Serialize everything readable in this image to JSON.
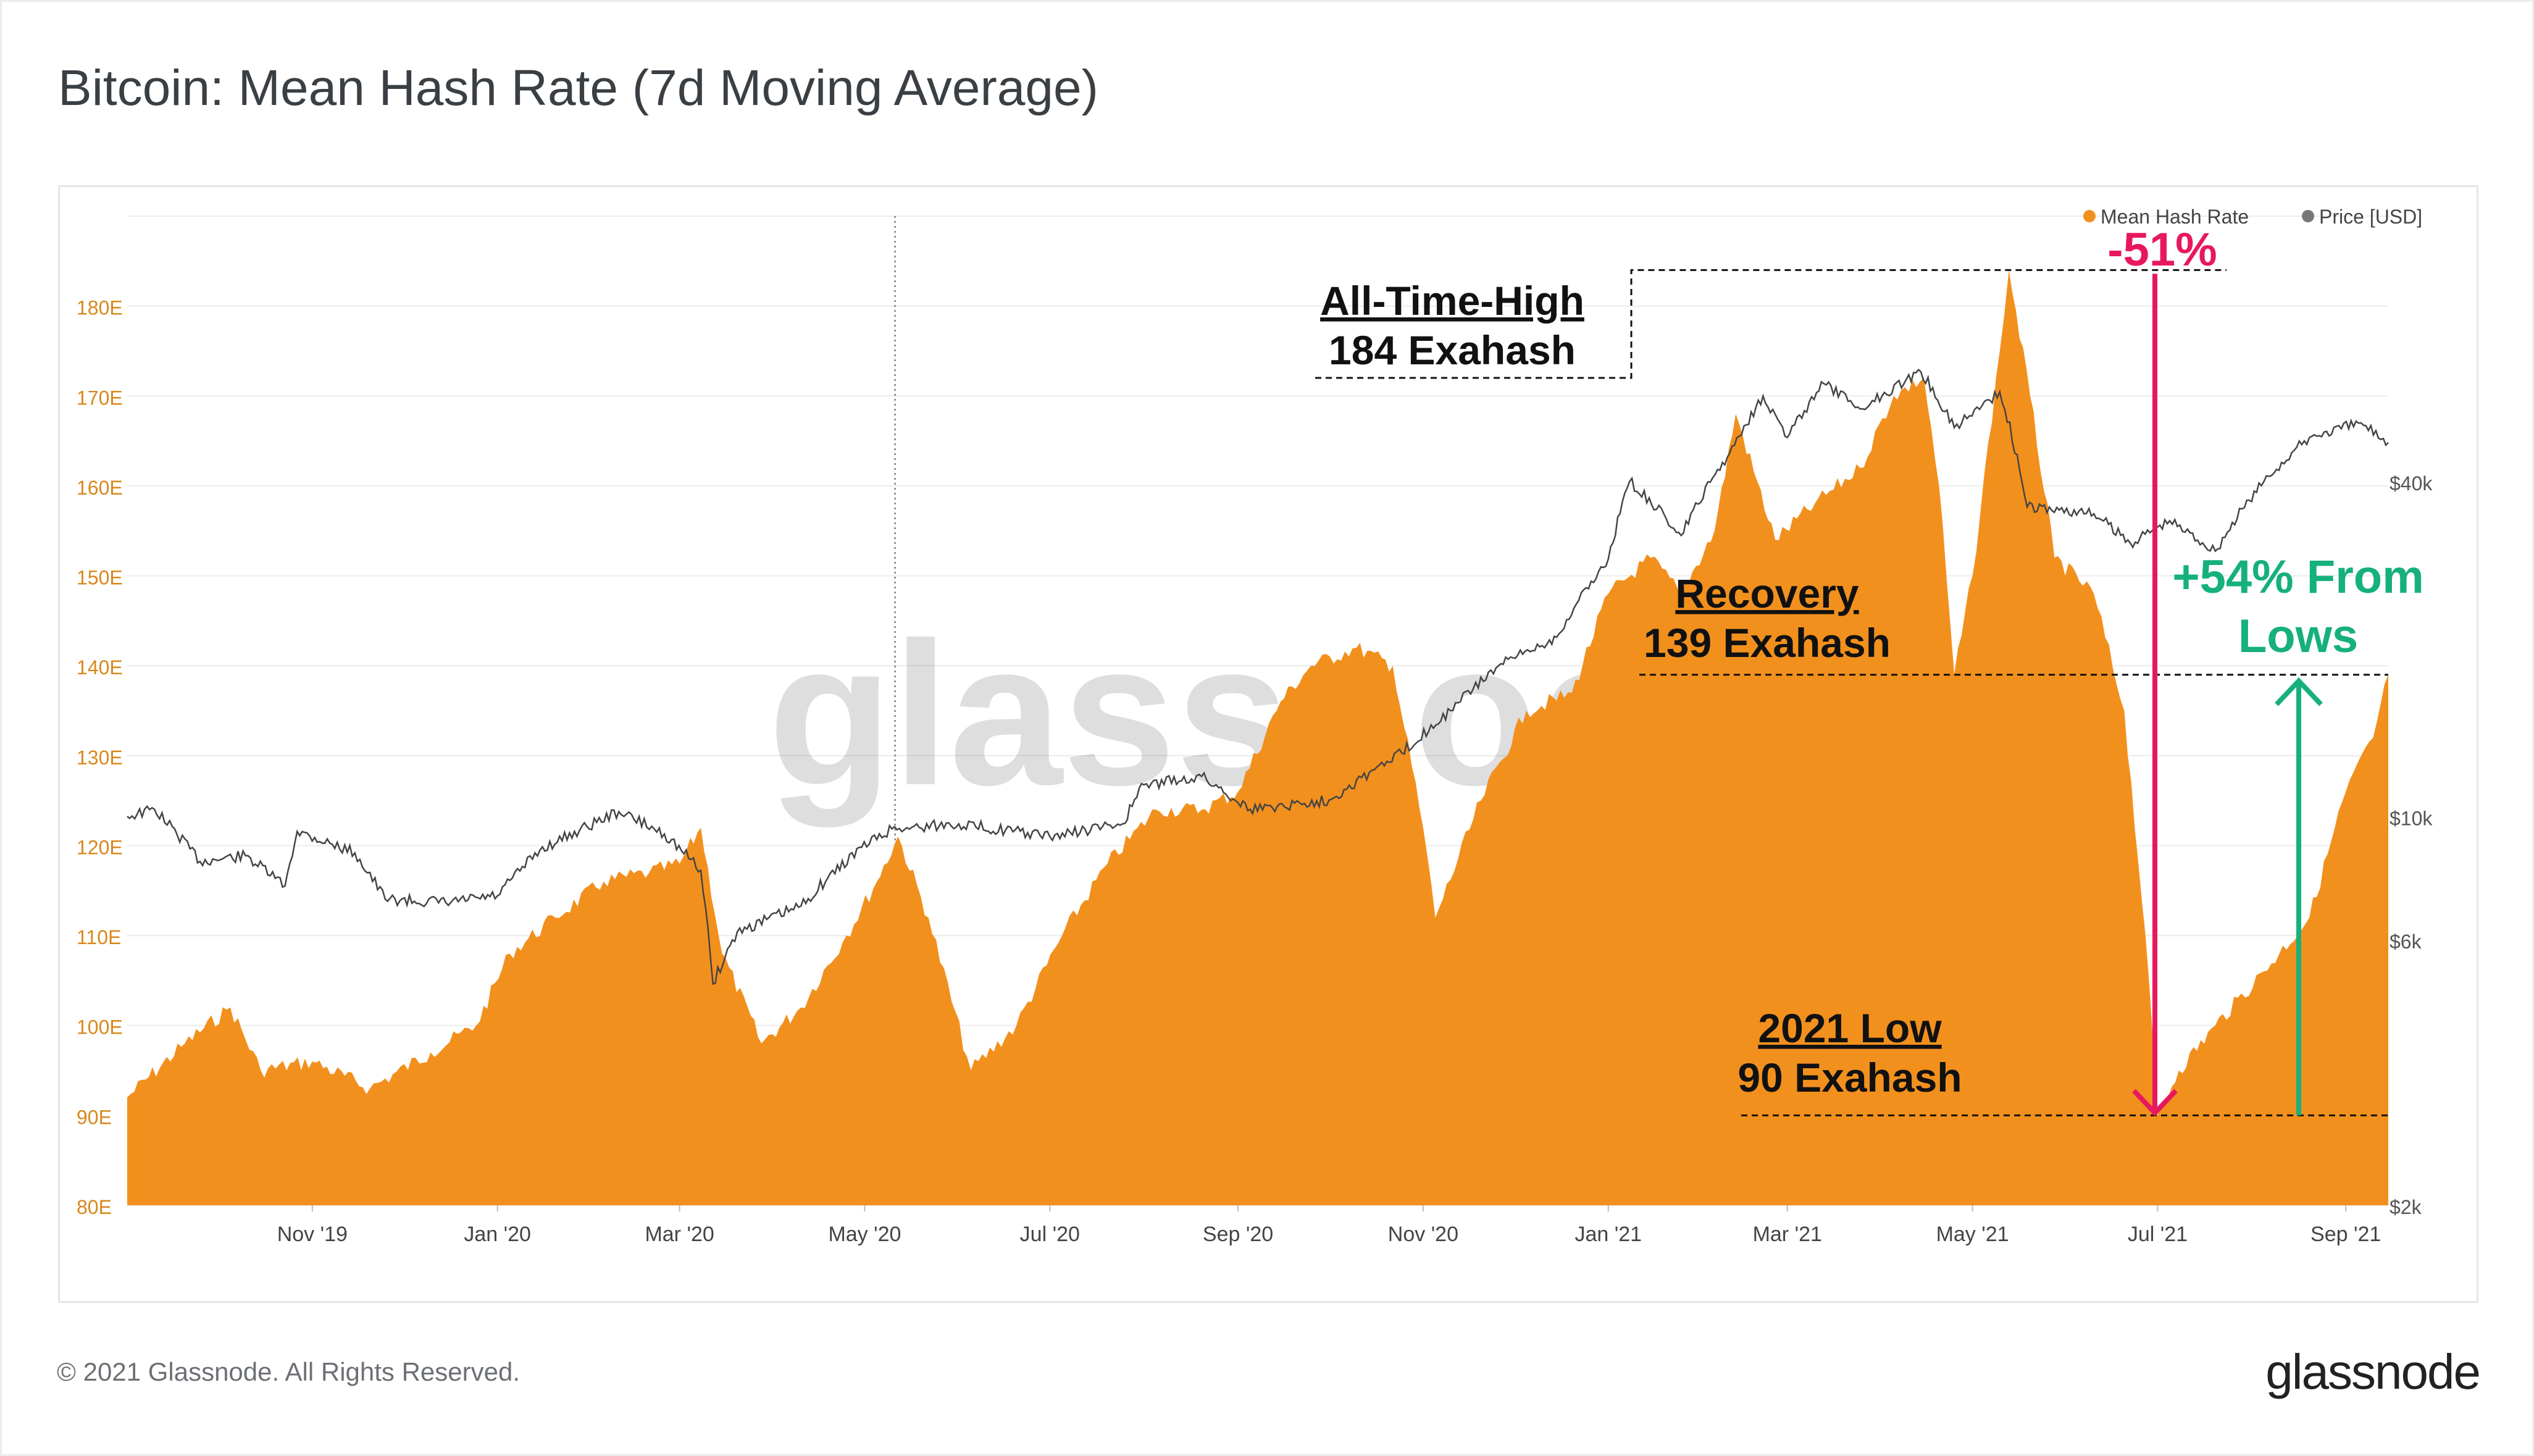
{
  "header": {
    "title": "Bitcoin: Mean Hash Rate (7d Moving Average)"
  },
  "footer": {
    "copyright": "© 2021 Glassnode. All Rights Reserved.",
    "brand": "glassnode"
  },
  "watermark": "glassnode",
  "colors": {
    "hash_rate": "#f2901e",
    "price": "#444444",
    "ath_drop": "#e8185e",
    "recovery": "#16b07c",
    "left_axis_text": "#d8881c"
  },
  "chart_data": {
    "type": "area",
    "title": "Bitcoin: Mean Hash Rate (7d Moving Average)",
    "x_range": [
      "2019-09-01",
      "2021-09-15"
    ],
    "x_tick_labels": [
      "Nov '19",
      "Jan '20",
      "Mar '20",
      "May '20",
      "Jul '20",
      "Sep '20",
      "Nov '20",
      "Jan '21",
      "Mar '21",
      "May '21",
      "Jul '21",
      "Sep '21"
    ],
    "y_left": {
      "unit": "E",
      "range": [
        80,
        190
      ],
      "tick_labels": [
        "80E",
        "90E",
        "100E",
        "110E",
        "120E",
        "130E",
        "140E",
        "150E",
        "160E",
        "170E",
        "180E"
      ]
    },
    "y_right": {
      "scale": "log",
      "range": [
        2000,
        120000
      ],
      "tick_labels": [
        "$2k",
        "$6k",
        "$10k",
        "$40k"
      ]
    },
    "legend": {
      "position": "top-right",
      "entries": [
        "Mean Hash Rate",
        "Price [USD]"
      ]
    },
    "grid": true,
    "series": [
      {
        "name": "Mean Hash Rate",
        "axis": "left",
        "color": "#f2901e",
        "points": [
          [
            "2019-09-01",
            92
          ],
          [
            "2019-09-20",
            98
          ],
          [
            "2019-10-05",
            102
          ],
          [
            "2019-10-15",
            95
          ],
          [
            "2019-11-01",
            96
          ],
          [
            "2019-11-20",
            93
          ],
          [
            "2019-12-10",
            97
          ],
          [
            "2019-12-25",
            100
          ],
          [
            "2020-01-05",
            108
          ],
          [
            "2020-01-20",
            112
          ],
          [
            "2020-02-05",
            116
          ],
          [
            "2020-02-20",
            117
          ],
          [
            "2020-03-01",
            118
          ],
          [
            "2020-03-08",
            122
          ],
          [
            "2020-03-15",
            108
          ],
          [
            "2020-03-28",
            98
          ],
          [
            "2020-04-10",
            102
          ],
          [
            "2020-04-25",
            110
          ],
          [
            "2020-05-05",
            116
          ],
          [
            "2020-05-12",
            121
          ],
          [
            "2020-05-22",
            112
          ],
          [
            "2020-06-05",
            95
          ],
          [
            "2020-06-20",
            100
          ],
          [
            "2020-07-05",
            110
          ],
          [
            "2020-07-20",
            118
          ],
          [
            "2020-08-05",
            124
          ],
          [
            "2020-08-20",
            124
          ],
          [
            "2020-09-01",
            126
          ],
          [
            "2020-09-15",
            136
          ],
          [
            "2020-09-25",
            140
          ],
          [
            "2020-10-10",
            142
          ],
          [
            "2020-10-22",
            140
          ],
          [
            "2020-11-01",
            122
          ],
          [
            "2020-11-05",
            112
          ],
          [
            "2020-11-20",
            125
          ],
          [
            "2020-12-05",
            135
          ],
          [
            "2020-12-20",
            137
          ],
          [
            "2021-01-01",
            148
          ],
          [
            "2021-01-15",
            152
          ],
          [
            "2021-01-25",
            148
          ],
          [
            "2021-02-05",
            155
          ],
          [
            "2021-02-12",
            168
          ],
          [
            "2021-02-25",
            154
          ],
          [
            "2021-03-10",
            158
          ],
          [
            "2021-03-25",
            162
          ],
          [
            "2021-04-05",
            170
          ],
          [
            "2021-04-15",
            172
          ],
          [
            "2021-04-20",
            160
          ],
          [
            "2021-04-25",
            139
          ],
          [
            "2021-05-01",
            150
          ],
          [
            "2021-05-10",
            175
          ],
          [
            "2021-05-13",
            184
          ],
          [
            "2021-05-20",
            170
          ],
          [
            "2021-05-28",
            152
          ],
          [
            "2021-06-10",
            148
          ],
          [
            "2021-06-20",
            135
          ],
          [
            "2021-06-27",
            110
          ],
          [
            "2021-07-01",
            90
          ],
          [
            "2021-07-08",
            95
          ],
          [
            "2021-07-20",
            100
          ],
          [
            "2021-08-05",
            106
          ],
          [
            "2021-08-20",
            112
          ],
          [
            "2021-09-01",
            126
          ],
          [
            "2021-09-10",
            132
          ],
          [
            "2021-09-15",
            139
          ]
        ]
      },
      {
        "name": "Price [USD]",
        "axis": "right",
        "color": "#444444",
        "points": [
          [
            "2019-09-01",
            10000
          ],
          [
            "2019-09-10",
            10300
          ],
          [
            "2019-09-25",
            8300
          ],
          [
            "2019-10-10",
            8500
          ],
          [
            "2019-10-23",
            7500
          ],
          [
            "2019-10-27",
            9400
          ],
          [
            "2019-11-15",
            8600
          ],
          [
            "2019-11-25",
            7100
          ],
          [
            "2019-12-15",
            7000
          ],
          [
            "2020-01-01",
            7200
          ],
          [
            "2020-01-15",
            8700
          ],
          [
            "2020-02-10",
            10200
          ],
          [
            "2020-02-25",
            9300
          ],
          [
            "2020-03-08",
            8000
          ],
          [
            "2020-03-12",
            5000
          ],
          [
            "2020-03-20",
            6200
          ],
          [
            "2020-04-10",
            6900
          ],
          [
            "2020-04-30",
            8800
          ],
          [
            "2020-05-10",
            9500
          ],
          [
            "2020-06-01",
            9700
          ],
          [
            "2020-07-01",
            9200
          ],
          [
            "2020-07-25",
            9700
          ],
          [
            "2020-08-01",
            11400
          ],
          [
            "2020-08-20",
            11800
          ],
          [
            "2020-09-05",
            10300
          ],
          [
            "2020-10-01",
            10700
          ],
          [
            "2020-10-25",
            13000
          ],
          [
            "2020-11-10",
            15500
          ],
          [
            "2020-11-25",
            18500
          ],
          [
            "2020-12-15",
            21000
          ],
          [
            "2021-01-01",
            29000
          ],
          [
            "2021-01-08",
            40000
          ],
          [
            "2021-01-25",
            32000
          ],
          [
            "2021-02-10",
            45000
          ],
          [
            "2021-02-21",
            57000
          ],
          [
            "2021-03-01",
            48000
          ],
          [
            "2021-03-13",
            60000
          ],
          [
            "2021-03-25",
            54000
          ],
          [
            "2021-04-14",
            63000
          ],
          [
            "2021-04-25",
            50000
          ],
          [
            "2021-05-10",
            58000
          ],
          [
            "2021-05-19",
            36000
          ],
          [
            "2021-06-10",
            35000
          ],
          [
            "2021-06-22",
            31000
          ],
          [
            "2021-07-05",
            34000
          ],
          [
            "2021-07-20",
            30000
          ],
          [
            "2021-08-05",
            40000
          ],
          [
            "2021-08-20",
            48000
          ],
          [
            "2021-09-06",
            51000
          ],
          [
            "2021-09-15",
            47000
          ]
        ]
      }
    ],
    "annotations": [
      {
        "lines": [
          "All-Time-High",
          "184 Exahash"
        ],
        "at": [
          "2021-05-13",
          184
        ],
        "color": "#111111"
      },
      {
        "lines": [
          "Recovery",
          "139 Exahash"
        ],
        "at": [
          "2021-09-15",
          139
        ],
        "color": "#111111"
      },
      {
        "lines": [
          "2021 Low",
          "90 Exahash"
        ],
        "at": [
          "2021-07-01",
          90
        ],
        "color": "#111111"
      },
      {
        "lines": [
          "-51%"
        ],
        "from": 184,
        "to": 90,
        "color": "#e8185e"
      },
      {
        "lines": [
          "+54% From",
          "Lows"
        ],
        "from": 90,
        "to": 139,
        "color": "#16b07c"
      }
    ]
  }
}
